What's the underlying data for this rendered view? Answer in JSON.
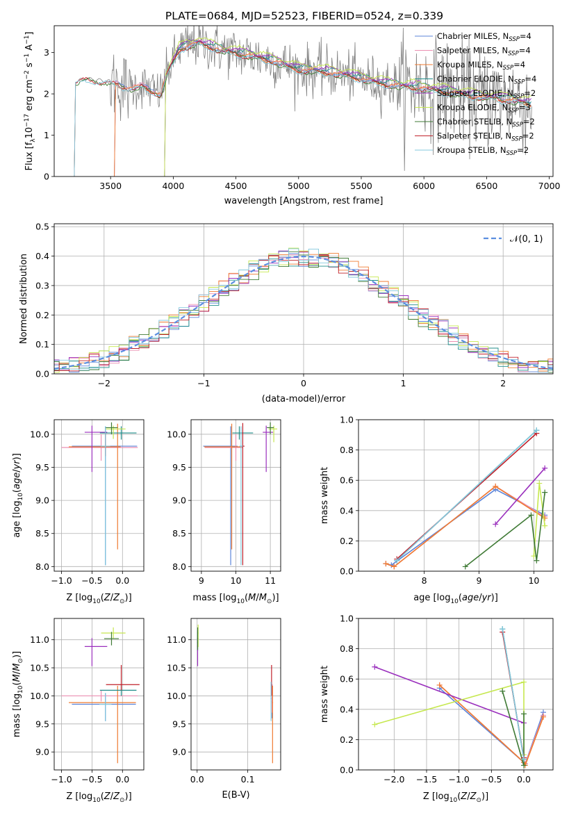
{
  "title": "PLATE=0684, MJD=52523, FIBERID=0524, z=0.339",
  "colors": {
    "Chabrier MILES": "#5b84d8",
    "Salpeter MILES": "#ec8fb2",
    "Kroupa MILES": "#ef7b31",
    "Chabrier ELODIE": "#1f8d8a",
    "Salpeter ELODIE": "#9a2fbd",
    "Kroupa ELODIE": "#c6e84f",
    "Chabrier STELIB": "#3f7a35",
    "Salpeter STELIB": "#c0202a",
    "Kroupa STELIB": "#83c8dd",
    "data": "#808080",
    "normal": "#5b8ee0"
  },
  "chart_data": [
    {
      "id": "spectrum",
      "type": "line",
      "xlabel": "wavelength [Angstrom, rest frame]",
      "ylabel": "Flux [f_λ10^-17 erg cm^-2 s^-1 A^-1]",
      "xlim": [
        3050,
        7030
      ],
      "ylim": [
        0,
        3.65
      ],
      "xticks": [
        3500,
        4000,
        4500,
        5000,
        5500,
        6000,
        6500,
        7000
      ],
      "yticks": [
        0,
        1,
        2,
        3
      ],
      "grid": false,
      "legend_position": "top-right",
      "legend": [
        {
          "name": "Chabrier MILES",
          "sub": "N_SSP=4"
        },
        {
          "name": "Salpeter MILES",
          "sub": "N_SSP=4"
        },
        {
          "name": "Kroupa MILES",
          "sub": "N_SSP=4"
        },
        {
          "name": "Chabrier ELODIE",
          "sub": "N_SSP=4"
        },
        {
          "name": "Salpeter ELODIE",
          "sub": "N_SSP=2"
        },
        {
          "name": "Kroupa ELODIE",
          "sub": "N_SSP=3"
        },
        {
          "name": "Chabrier STELIB",
          "sub": "N_SSP=2"
        },
        {
          "name": "Salpeter STELIB",
          "sub": "N_SSP=2"
        },
        {
          "name": "Kroupa STELIB",
          "sub": "N_SSP=2"
        }
      ],
      "model_wave_start": {
        "MILES": 3540,
        "ELODIE": 3940,
        "STELIB": 3220
      },
      "continuum": [
        [
          3220,
          2.3
        ],
        [
          3300,
          2.37
        ],
        [
          3500,
          2.3
        ],
        [
          3650,
          2.15
        ],
        [
          3750,
          2.2
        ],
        [
          3900,
          2.0
        ],
        [
          3950,
          2.5
        ],
        [
          4050,
          3.1
        ],
        [
          4200,
          3.25
        ],
        [
          4400,
          3.05
        ],
        [
          4600,
          2.95
        ],
        [
          4800,
          2.8
        ],
        [
          5000,
          2.6
        ],
        [
          5200,
          2.55
        ],
        [
          5400,
          2.45
        ],
        [
          5600,
          2.3
        ],
        [
          5800,
          2.2
        ],
        [
          6000,
          2.15
        ],
        [
          6200,
          2.05
        ],
        [
          6400,
          1.95
        ],
        [
          6600,
          1.9
        ],
        [
          6800,
          1.8
        ],
        [
          6860,
          1.75
        ]
      ]
    },
    {
      "id": "residuals",
      "type": "bar",
      "xlabel": "(data-model)/error",
      "ylabel": "Normed distribution",
      "xlim": [
        -2.5,
        2.5
      ],
      "ylim": [
        0,
        0.51
      ],
      "xticks": [
        -2,
        -1,
        0,
        1,
        2
      ],
      "yticks": [
        0.0,
        0.1,
        0.2,
        0.3,
        0.4,
        0.5
      ],
      "grid": true,
      "legend_position": "top-right",
      "legend": "𝒩(0, 1)"
    },
    {
      "id": "age-vs-Z",
      "type": "scatter",
      "xlabel": "Z [log10(Z/Z⊙)]",
      "ylabel": "age  [log10(age/yr)]",
      "xlim": [
        -1.12,
        0.35
      ],
      "ylim": [
        7.93,
        10.22
      ],
      "xticks": [
        -1.0,
        -0.5,
        0.0
      ],
      "yticks": [
        8.0,
        8.5,
        9.0,
        9.5,
        10.0
      ],
      "grid": true,
      "errorbars": [
        {
          "series": "Chabrier MILES",
          "x": -0.28,
          "xerr": [
            0.55,
            0.52
          ],
          "y": 9.82,
          "yerr": [
            1.8,
            0.3
          ]
        },
        {
          "series": "Salpeter MILES",
          "x": -0.35,
          "xerr": [
            0.65,
            0.6
          ],
          "y": 9.8,
          "yerr": [
            0.2,
            0.2
          ]
        },
        {
          "series": "Kroupa MILES",
          "x": -0.08,
          "xerr": [
            0.8,
            0.05
          ],
          "y": 9.81,
          "yerr": [
            1.55,
            0.35
          ]
        },
        {
          "series": "Chabrier ELODIE",
          "x": -0.02,
          "xerr": [
            0.35,
            0.25
          ],
          "y": 10.02,
          "yerr": [
            0.1,
            0.1
          ]
        },
        {
          "series": "Salpeter ELODIE",
          "x": -0.5,
          "xerr": [
            0.12,
            0.25
          ],
          "y": 10.03,
          "yerr": [
            0.6,
            0.1
          ]
        },
        {
          "series": "Kroupa ELODIE",
          "x": -0.15,
          "xerr": [
            0.12,
            0.2
          ],
          "y": 10.08,
          "yerr": [
            0.15,
            0.05
          ]
        },
        {
          "series": "Chabrier STELIB",
          "x": -0.18,
          "xerr": [
            0.1,
            0.1
          ],
          "y": 10.1,
          "yerr": [
            0.1,
            0.08
          ]
        },
        {
          "series": "Salpeter STELIB",
          "x": -0.28,
          "xerr": [
            0.08,
            0.08
          ],
          "y": 9.82,
          "yerr": [
            0.15,
            0.2
          ]
        },
        {
          "series": "Kroupa STELIB",
          "x": -0.28,
          "xerr": [
            0.08,
            0.08
          ],
          "y": 9.82,
          "yerr": [
            1.8,
            0.3
          ]
        }
      ]
    },
    {
      "id": "age-vs-mass",
      "type": "scatter",
      "xlabel": "mass [log10(M/M⊙)]",
      "ylabel": "",
      "xlim": [
        8.7,
        11.3
      ],
      "ylim": [
        7.93,
        10.22
      ],
      "xticks": [
        9,
        10,
        11
      ],
      "yticks": [
        8.0,
        8.5,
        9.0,
        9.5,
        10.0
      ],
      "grid": true,
      "errorbars": [
        {
          "series": "Chabrier MILES",
          "x": 9.85,
          "xerr": [
            0.8,
            0.2
          ],
          "y": 9.82,
          "yerr": [
            1.8,
            0.3
          ]
        },
        {
          "series": "Salpeter MILES",
          "x": 10.0,
          "xerr": [
            0.9,
            0.2
          ],
          "y": 9.8,
          "yerr": [
            0.2,
            0.2
          ]
        },
        {
          "series": "Kroupa MILES",
          "x": 9.88,
          "xerr": [
            0.8,
            0.3
          ],
          "y": 9.81,
          "yerr": [
            1.55,
            0.35
          ]
        },
        {
          "series": "Chabrier ELODIE",
          "x": 10.1,
          "xerr": [
            0.2,
            0.4
          ],
          "y": 10.02,
          "yerr": [
            0.1,
            0.1
          ]
        },
        {
          "series": "Salpeter ELODIE",
          "x": 10.88,
          "xerr": [
            0.1,
            0.2
          ],
          "y": 10.03,
          "yerr": [
            0.6,
            0.1
          ]
        },
        {
          "series": "Kroupa ELODIE",
          "x": 11.1,
          "xerr": [
            0.15,
            0.1
          ],
          "y": 10.08,
          "yerr": [
            0.2,
            0.05
          ]
        },
        {
          "series": "Chabrier STELIB",
          "x": 11.0,
          "xerr": [
            0.1,
            0.1
          ],
          "y": 10.1,
          "yerr": [
            0.1,
            0.08
          ]
        },
        {
          "series": "Salpeter STELIB",
          "x": 10.2,
          "xerr": [
            0.05,
            0.05
          ],
          "y": 9.82,
          "yerr": [
            1.8,
            0.35
          ]
        },
        {
          "series": "Kroupa STELIB",
          "x": 10.15,
          "xerr": [
            0.05,
            0.05
          ],
          "y": 9.82,
          "yerr": [
            1.8,
            0.3
          ]
        }
      ]
    },
    {
      "id": "weight-vs-age",
      "type": "line",
      "xlabel": "age  [log10(age/yr)]",
      "ylabel": "mass weight",
      "xlim": [
        6.8,
        10.35
      ],
      "ylim": [
        0.0,
        1.0
      ],
      "xticks": [
        8,
        9,
        10
      ],
      "yticks": [
        0.0,
        0.2,
        0.4,
        0.6,
        0.8,
        1.0
      ],
      "grid": true,
      "series": [
        {
          "name": "Chabrier MILES",
          "x": [
            7.3,
            7.4,
            9.3,
            10.2
          ],
          "y": [
            0.05,
            0.04,
            0.54,
            0.37
          ]
        },
        {
          "name": "Salpeter MILES",
          "x": [
            7.3,
            7.45,
            9.3,
            10.2
          ],
          "y": [
            0.05,
            0.03,
            0.56,
            0.36
          ]
        },
        {
          "name": "Kroupa MILES",
          "x": [
            7.3,
            7.45,
            9.3,
            10.2
          ],
          "y": [
            0.05,
            0.03,
            0.56,
            0.35
          ]
        },
        {
          "name": "Chabrier ELODIE",
          "x": [
            7.5,
            10.05
          ],
          "y": [
            0.07,
            0.93
          ]
        },
        {
          "name": "Salpeter ELODIE",
          "x": [
            9.3,
            10.2
          ],
          "y": [
            0.31,
            0.68
          ]
        },
        {
          "name": "Kroupa ELODIE",
          "x": [
            10.0,
            10.1,
            10.2
          ],
          "y": [
            0.1,
            0.58,
            0.3
          ]
        },
        {
          "name": "Chabrier STELIB",
          "x": [
            8.75,
            9.95,
            10.05,
            10.2
          ],
          "y": [
            0.03,
            0.37,
            0.07,
            0.52
          ]
        },
        {
          "name": "Salpeter STELIB",
          "x": [
            7.5,
            10.05
          ],
          "y": [
            0.08,
            0.91
          ]
        },
        {
          "name": "Kroupa STELIB",
          "x": [
            7.5,
            10.05
          ],
          "y": [
            0.07,
            0.93
          ]
        }
      ]
    },
    {
      "id": "mass-vs-Z",
      "type": "scatter",
      "xlabel": "Z [log10(Z/Z⊙)]",
      "ylabel": "mass [log10(M/M⊙)]",
      "xlim": [
        -1.12,
        0.35
      ],
      "ylim": [
        8.68,
        11.38
      ],
      "xticks": [
        -1.0,
        -0.5,
        0.0
      ],
      "yticks": [
        9.0,
        9.5,
        10.0,
        10.5,
        11.0
      ],
      "grid": true,
      "errorbars": [
        {
          "series": "Chabrier MILES",
          "x": -0.28,
          "xerr": [
            0.55,
            0.5
          ],
          "y": 9.85,
          "yerr": [
            0.3,
            0.2
          ]
        },
        {
          "series": "Salpeter MILES",
          "x": -0.35,
          "xerr": [
            0.65,
            0.6
          ],
          "y": 10.0,
          "yerr": [
            0.1,
            0.1
          ]
        },
        {
          "series": "Kroupa MILES",
          "x": -0.08,
          "xerr": [
            0.8,
            0.3
          ],
          "y": 9.88,
          "yerr": [
            1.08,
            0.3
          ]
        },
        {
          "series": "Chabrier ELODIE",
          "x": -0.02,
          "xerr": [
            0.35,
            0.25
          ],
          "y": 10.1,
          "yerr": [
            0.1,
            0.1
          ]
        },
        {
          "series": "Salpeter ELODIE",
          "x": -0.5,
          "xerr": [
            0.12,
            0.25
          ],
          "y": 10.88,
          "yerr": [
            0.35,
            0.15
          ]
        },
        {
          "series": "Kroupa ELODIE",
          "x": -0.15,
          "xerr": [
            0.2,
            0.2
          ],
          "y": 11.12,
          "yerr": [
            0.1,
            0.1
          ]
        },
        {
          "series": "Chabrier STELIB",
          "x": -0.18,
          "xerr": [
            0.12,
            0.12
          ],
          "y": 11.02,
          "yerr": [
            0.12,
            0.12
          ]
        },
        {
          "series": "Salpeter STELIB",
          "x": -0.02,
          "xerr": [
            0.25,
            0.3
          ],
          "y": 10.2,
          "yerr": [
            0.1,
            0.35
          ]
        },
        {
          "series": "Kroupa STELIB",
          "x": -0.28,
          "xerr": [
            0.1,
            0.1
          ],
          "y": 9.85,
          "yerr": [
            0.3,
            0.2
          ]
        }
      ]
    },
    {
      "id": "mass-vs-ebv",
      "type": "scatter",
      "xlabel": "E(B-V)",
      "ylabel": "",
      "xlim": [
        -0.012,
        0.165
      ],
      "ylim": [
        8.68,
        11.38
      ],
      "xticks": [
        0.0,
        0.1
      ],
      "yticks": [
        9.0,
        9.5,
        10.0,
        10.5,
        11.0
      ],
      "grid": true,
      "errorbars": [
        {
          "series": "Chabrier MILES",
          "x": 0.148,
          "xerr": [
            0.001,
            0.001
          ],
          "y": 9.9,
          "yerr": [
            0.3,
            0.3
          ]
        },
        {
          "series": "Salpeter MILES",
          "x": 0.148,
          "xerr": [
            0.001,
            0.001
          ],
          "y": 10.0,
          "yerr": [
            0.3,
            0.2
          ]
        },
        {
          "series": "Kroupa MILES",
          "x": 0.149,
          "xerr": [
            0.001,
            0.001
          ],
          "y": 9.88,
          "yerr": [
            1.08,
            0.3
          ]
        },
        {
          "series": "Chabrier ELODIE",
          "x": 0.001,
          "xerr": [
            0.001,
            0.001
          ],
          "y": 10.95,
          "yerr": [
            0.15,
            0.2
          ]
        },
        {
          "series": "Salpeter ELODIE",
          "x": 0.001,
          "xerr": [
            0.001,
            0.001
          ],
          "y": 10.88,
          "yerr": [
            0.35,
            0.15
          ]
        },
        {
          "series": "Kroupa ELODIE",
          "x": 0.002,
          "xerr": [
            0.001,
            0.001
          ],
          "y": 11.12,
          "yerr": [
            0.25,
            0.15
          ]
        },
        {
          "series": "Chabrier STELIB",
          "x": 0.001,
          "xerr": [
            0.001,
            0.001
          ],
          "y": 11.02,
          "yerr": [
            0.2,
            0.2
          ]
        },
        {
          "series": "Salpeter STELIB",
          "x": 0.147,
          "xerr": [
            0.001,
            0.001
          ],
          "y": 10.2,
          "yerr": [
            0.2,
            0.35
          ]
        },
        {
          "series": "Kroupa STELIB",
          "x": 0.146,
          "xerr": [
            0.001,
            0.001
          ],
          "y": 9.95,
          "yerr": [
            0.4,
            0.3
          ]
        }
      ]
    },
    {
      "id": "weight-vs-Z",
      "type": "line",
      "xlabel": "Z [log10(Z/Z⊙)]",
      "ylabel": "mass weight",
      "xlim": [
        -2.55,
        0.45
      ],
      "ylim": [
        0.0,
        1.0
      ],
      "xticks": [
        -2.0,
        -1.5,
        -1.0,
        -0.5,
        0.0
      ],
      "yticks": [
        0.0,
        0.2,
        0.4,
        0.6,
        0.8,
        1.0
      ],
      "grid": true,
      "series": [
        {
          "name": "Chabrier MILES",
          "x": [
            -1.3,
            0.0,
            0.02,
            0.3
          ],
          "y": [
            0.54,
            0.05,
            0.04,
            0.38
          ]
        },
        {
          "name": "Salpeter MILES",
          "x": [
            -1.3,
            0.0,
            0.02,
            0.3
          ],
          "y": [
            0.56,
            0.05,
            0.04,
            0.36
          ]
        },
        {
          "name": "Kroupa MILES",
          "x": [
            -1.3,
            0.0,
            0.02,
            0.3
          ],
          "y": [
            0.56,
            0.05,
            0.03,
            0.35
          ]
        },
        {
          "name": "Chabrier ELODIE",
          "x": [
            -0.33,
            0.0
          ],
          "y": [
            0.93,
            0.07
          ]
        },
        {
          "name": "Salpeter ELODIE",
          "x": [
            -2.3,
            0.0
          ],
          "y": [
            0.68,
            0.31
          ]
        },
        {
          "name": "Kroupa ELODIE",
          "x": [
            -2.3,
            0.0,
            0.0
          ],
          "y": [
            0.3,
            0.58,
            0.1
          ]
        },
        {
          "name": "Chabrier STELIB",
          "x": [
            -0.33,
            0.0,
            0.0,
            0.0
          ],
          "y": [
            0.52,
            0.03,
            0.37,
            0.07
          ]
        },
        {
          "name": "Salpeter STELIB",
          "x": [
            -0.33,
            0.0
          ],
          "y": [
            0.91,
            0.08
          ]
        },
        {
          "name": "Kroupa STELIB",
          "x": [
            -0.33,
            0.0
          ],
          "y": [
            0.93,
            0.07
          ]
        }
      ]
    }
  ]
}
